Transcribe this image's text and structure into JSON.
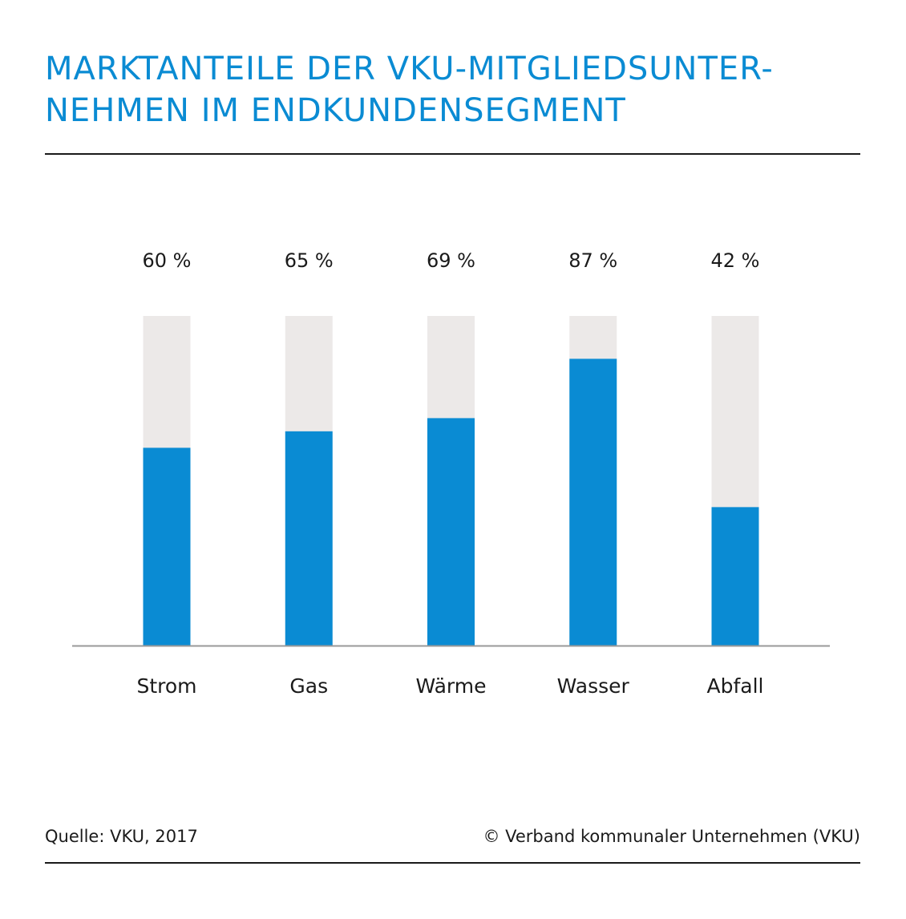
{
  "title_lines": [
    "MARKTANTEILE DER VKU-MITGLIEDSUNTER-",
    "NEHMEN IM ENDKUNDENSEGMENT"
  ],
  "footer": {
    "source": "Quelle: VKU, 2017",
    "copyright": "© Verband kommunaler Unternehmen (VKU)"
  },
  "colors": {
    "accent": "#0a8bd3",
    "bar": "#0a8bd3",
    "track": "#ece9e8",
    "axis": "#999999",
    "text": "#1a1a1a"
  },
  "chart_data": {
    "type": "bar",
    "categories": [
      "Strom",
      "Gas",
      "Wärme",
      "Wasser",
      "Abfall"
    ],
    "values": [
      60,
      65,
      69,
      87,
      42
    ],
    "value_labels": [
      "60 %",
      "65 %",
      "69 %",
      "87 %",
      "42 %"
    ],
    "ylim": [
      0,
      100
    ],
    "unit": "%",
    "grid": false,
    "legend": "none",
    "background_track": true
  }
}
